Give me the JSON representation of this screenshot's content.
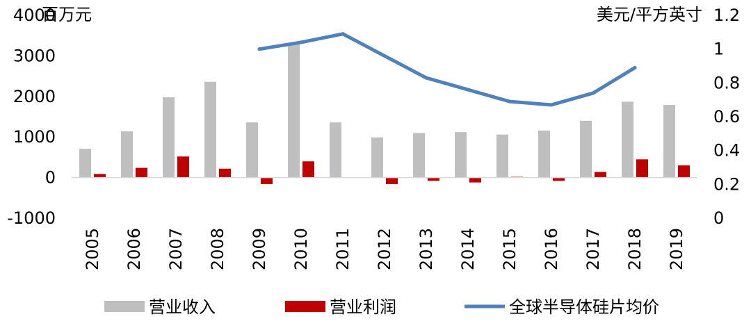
{
  "chart_data": {
    "type": "bar",
    "categories": [
      "2005",
      "2006",
      "2007",
      "2008",
      "2009",
      "2010",
      "2011",
      "2012",
      "2013",
      "2014",
      "2015",
      "2016",
      "2017",
      "2018",
      "2019"
    ],
    "series": [
      {
        "name": "营业收入",
        "type": "bar",
        "axis": "left",
        "color": "#BFBFBF",
        "values": [
          710,
          1140,
          1980,
          2360,
          1360,
          3300,
          1360,
          990,
          1100,
          1120,
          1060,
          1160,
          1400,
          1870,
          1790
        ]
      },
      {
        "name": "营业利润",
        "type": "bar",
        "axis": "left",
        "color": "#C00000",
        "values": [
          90,
          240,
          520,
          220,
          -160,
          400,
          null,
          -160,
          -80,
          -120,
          20,
          -80,
          140,
          450,
          300
        ]
      },
      {
        "name": "全球半导体硅片均价",
        "type": "line",
        "axis": "right",
        "color": "#4F81BD",
        "values": [
          null,
          null,
          null,
          null,
          1.0,
          1.04,
          1.09,
          0.96,
          0.83,
          0.76,
          0.69,
          0.67,
          0.74,
          0.89,
          null
        ]
      }
    ],
    "left_axis": {
      "unit": "百万元",
      "ylim": [
        -1000,
        4000
      ],
      "ticks": [
        "-1000",
        "0",
        "1000",
        "2000",
        "3000",
        "4000"
      ],
      "tick_values": [
        -1000,
        0,
        1000,
        2000,
        3000,
        4000
      ]
    },
    "right_axis": {
      "unit": "美元/平方英寸",
      "ylim": [
        0,
        1.2
      ],
      "ticks": [
        "0",
        "0.2",
        "0.4",
        "0.6",
        "0.8",
        "1",
        "1.2"
      ],
      "tick_values": [
        0,
        0.2,
        0.4,
        0.6,
        0.8,
        1.0,
        1.2
      ]
    },
    "legend": {
      "placement": "bottom"
    },
    "grid": false
  }
}
